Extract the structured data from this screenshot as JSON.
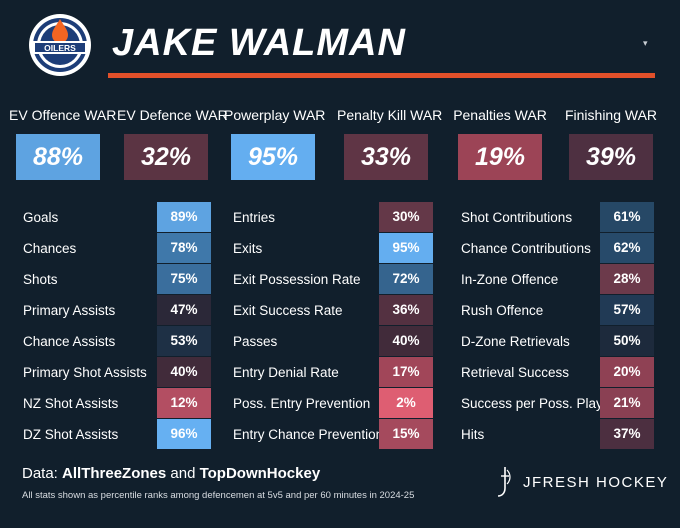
{
  "header": {
    "player_name": "JAKE WALMAN",
    "team_logo_text": "OILERS"
  },
  "war": [
    {
      "label": "EV Offence WAR",
      "value": "88%",
      "color": "#5ea3e1"
    },
    {
      "label": "EV Defence WAR",
      "value": "32%",
      "color": "#5b3443"
    },
    {
      "label": "Powerplay WAR",
      "value": "95%",
      "color": "#64aef0"
    },
    {
      "label": "Penalty Kill WAR",
      "value": "33%",
      "color": "#5f3545"
    },
    {
      "label": "Penalties WAR",
      "value": "19%",
      "color": "#9c4456"
    },
    {
      "label": "Finishing WAR",
      "value": "39%",
      "color": "#4e3041"
    }
  ],
  "columns": [
    {
      "rows": [
        {
          "label": "Goals",
          "value": "89%",
          "color": "#5ea3e1"
        },
        {
          "label": "Chances",
          "value": "78%",
          "color": "#3f78aa"
        },
        {
          "label": "Shots",
          "value": "75%",
          "color": "#3a6e9d"
        },
        {
          "label": "Primary Assists",
          "value": "47%",
          "color": "#2b2838"
        },
        {
          "label": "Chance Assists",
          "value": "53%",
          "color": "#1e3045"
        },
        {
          "label": "Primary Shot Assists",
          "value": "40%",
          "color": "#412b3a"
        },
        {
          "label": "NZ Shot Assists",
          "value": "12%",
          "color": "#b34e62"
        },
        {
          "label": "DZ Shot Assists",
          "value": "96%",
          "color": "#66b0f2"
        }
      ]
    },
    {
      "rows": [
        {
          "label": "Entries",
          "value": "30%",
          "color": "#643848"
        },
        {
          "label": "Exits",
          "value": "95%",
          "color": "#64aef0"
        },
        {
          "label": "Exit Possession Rate",
          "value": "72%",
          "color": "#35648e"
        },
        {
          "label": "Exit Success Rate",
          "value": "36%",
          "color": "#543141"
        },
        {
          "label": "Passes",
          "value": "40%",
          "color": "#412b3a"
        },
        {
          "label": "Entry Denial Rate",
          "value": "17%",
          "color": "#a14659"
        },
        {
          "label": "Poss. Entry Prevention",
          "value": "2%",
          "color": "#de5e72"
        },
        {
          "label": "Entry Chance Prevention",
          "value": "15%",
          "color": "#a54a5d"
        }
      ]
    },
    {
      "rows": [
        {
          "label": "Shot Contributions",
          "value": "61%",
          "color": "#264866"
        },
        {
          "label": "Chance Contributions",
          "value": "62%",
          "color": "#274a6a"
        },
        {
          "label": "In-Zone Offence",
          "value": "28%",
          "color": "#6c3a4b"
        },
        {
          "label": "Rush Offence",
          "value": "57%",
          "color": "#213a55"
        },
        {
          "label": "D-Zone Retrievals",
          "value": "50%",
          "color": "#1d2a3c"
        },
        {
          "label": "Retrieval Success",
          "value": "20%",
          "color": "#8f4154"
        },
        {
          "label": "Success per Poss. Play",
          "value": "21%",
          "color": "#8a4053"
        },
        {
          "label": "Hits",
          "value": "37%",
          "color": "#4c2f40"
        }
      ]
    }
  ],
  "footer": {
    "source_prefix": "Data: ",
    "source_one": "AllThreeZones",
    "source_join": " and ",
    "source_two": "TopDownHockey",
    "footnote": "All stats shown as percentile ranks among defencemen at 5v5 and per 60 minutes in 2024-25",
    "brand": "JFRESH HOCKEY"
  },
  "colors": {
    "background": "#111f2c",
    "accent_rule": "#e2502a",
    "logo_blue": "#1d3d78",
    "logo_orange": "#f26522"
  }
}
